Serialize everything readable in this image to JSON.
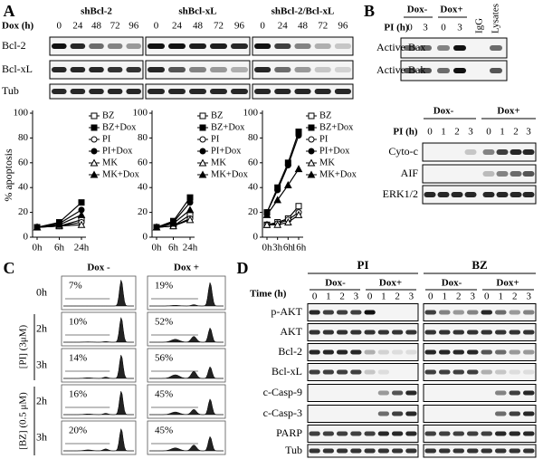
{
  "panel_a": {
    "label": "A",
    "dox_header": "Dox (h)",
    "groups": [
      {
        "name": "shBcl-2",
        "times": [
          "0",
          "24",
          "48",
          "72",
          "96"
        ]
      },
      {
        "name": "shBcl-xL",
        "times": [
          "0",
          "24",
          "48",
          "72",
          "96"
        ]
      },
      {
        "name": "shBcl-2/Bcl-xL",
        "times": [
          "0",
          "24",
          "48",
          "72",
          "96"
        ]
      }
    ],
    "rows": [
      "Bcl-2",
      "Bcl-xL",
      "Tub"
    ]
  },
  "chart_data": [
    {
      "type": "line",
      "y_label": "% apoptosis",
      "categories": [
        "0h",
        "6h",
        "24h"
      ],
      "ylim": [
        0,
        100
      ],
      "yticks": [
        0,
        20,
        40,
        60,
        80,
        100
      ],
      "series": [
        {
          "name": "BZ",
          "color": "#000000",
          "marker": "square-open",
          "values": [
            8,
            9,
            14
          ]
        },
        {
          "name": "BZ+Dox",
          "color": "#000000",
          "marker": "square-filled",
          "values": [
            8,
            12,
            28
          ]
        },
        {
          "name": "PI",
          "color": "#000000",
          "marker": "circle-open",
          "values": [
            8,
            9,
            12
          ]
        },
        {
          "name": "PI+Dox",
          "color": "#000000",
          "marker": "circle-filled",
          "values": [
            8,
            11,
            22
          ]
        },
        {
          "name": "MK",
          "color": "#000000",
          "marker": "triangle-open",
          "values": [
            8,
            9,
            10
          ]
        },
        {
          "name": "MK+Dox",
          "color": "#000000",
          "marker": "triangle-filled",
          "values": [
            8,
            10,
            18
          ]
        }
      ]
    },
    {
      "type": "line",
      "categories": [
        "0h",
        "6h",
        "24h"
      ],
      "ylim": [
        0,
        100
      ],
      "yticks": [
        0,
        20,
        40,
        60,
        80,
        100
      ],
      "series": [
        {
          "name": "BZ",
          "color": "#000000",
          "marker": "square-open",
          "values": [
            8,
            9,
            18
          ]
        },
        {
          "name": "BZ+Dox",
          "color": "#000000",
          "marker": "square-filled",
          "values": [
            8,
            13,
            32
          ]
        },
        {
          "name": "PI",
          "color": "#000000",
          "marker": "circle-open",
          "values": [
            8,
            9,
            15
          ]
        },
        {
          "name": "PI+Dox",
          "color": "#000000",
          "marker": "circle-filled",
          "values": [
            8,
            12,
            28
          ]
        },
        {
          "name": "MK",
          "color": "#000000",
          "marker": "triangle-open",
          "values": [
            8,
            9,
            14
          ]
        },
        {
          "name": "MK+Dox",
          "color": "#000000",
          "marker": "triangle-filled",
          "values": [
            8,
            11,
            22
          ]
        }
      ]
    },
    {
      "type": "line",
      "categories": [
        "0h",
        "3h",
        "6h",
        "16h"
      ],
      "ylim": [
        0,
        100
      ],
      "yticks": [
        0,
        20,
        40,
        60,
        80,
        100
      ],
      "series": [
        {
          "name": "BZ",
          "color": "#000000",
          "marker": "square-open",
          "values": [
            10,
            12,
            15,
            25
          ]
        },
        {
          "name": "BZ+Dox",
          "color": "#000000",
          "marker": "square-filled",
          "values": [
            20,
            40,
            60,
            85
          ]
        },
        {
          "name": "PI",
          "color": "#000000",
          "marker": "circle-open",
          "values": [
            10,
            11,
            14,
            20
          ]
        },
        {
          "name": "PI+Dox",
          "color": "#000000",
          "marker": "circle-filled",
          "values": [
            20,
            38,
            58,
            82
          ]
        },
        {
          "name": "MK",
          "color": "#000000",
          "marker": "triangle-open",
          "values": [
            10,
            10,
            12,
            18
          ]
        },
        {
          "name": "MK+Dox",
          "color": "#000000",
          "marker": "triangle-filled",
          "values": [
            18,
            30,
            42,
            55
          ]
        }
      ]
    }
  ],
  "panel_b": {
    "label": "B",
    "top": {
      "groups": [
        "Dox-",
        "Dox+"
      ],
      "pi_header": "PI (h)",
      "lanes": [
        "0",
        "3",
        "0",
        "3",
        "IgG",
        "Lysates"
      ],
      "rows": [
        "Active Bax",
        "Active Bak"
      ]
    },
    "bottom": {
      "groups": [
        "Dox-",
        "Dox+"
      ],
      "pi_header": "PI (h)",
      "lanes": [
        "0",
        "1",
        "2",
        "3",
        "0",
        "1",
        "2",
        "3"
      ],
      "rows": [
        "Cyto-c",
        "AIF",
        "ERK1/2"
      ]
    }
  },
  "panel_c": {
    "label": "C",
    "columns": [
      "Dox -",
      "Dox +"
    ],
    "brackets": [
      "[PI] (3μM)",
      "[BZ] (0.5 μM)"
    ],
    "rows": [
      {
        "time": "0h",
        "percents": [
          "7%",
          "19%"
        ]
      },
      {
        "time": "2h",
        "percents": [
          "10%",
          "52%"
        ]
      },
      {
        "time": "3h",
        "percents": [
          "14%",
          "56%"
        ]
      },
      {
        "time": "2h",
        "percents": [
          "16%",
          "45%"
        ]
      },
      {
        "time": "3h",
        "percents": [
          "20%",
          "45%"
        ]
      }
    ]
  },
  "panel_d": {
    "label": "D",
    "time_header": "Time (h)",
    "groups": [
      {
        "name": "PI",
        "dox": [
          "Dox-",
          "Dox+"
        ],
        "times": [
          "0",
          "1",
          "2",
          "3",
          "0",
          "1",
          "2",
          "3"
        ]
      },
      {
        "name": "BZ",
        "dox": [
          "Dox-",
          "Dox+"
        ],
        "times": [
          "0",
          "1",
          "2",
          "3",
          "0",
          "1",
          "2",
          "3"
        ]
      }
    ],
    "rows": [
      "p-AKT",
      "AKT",
      "Bcl-2",
      "Bcl-xL",
      "c-Casp-9",
      "c-Casp-3",
      "PARP",
      "Tub"
    ]
  }
}
